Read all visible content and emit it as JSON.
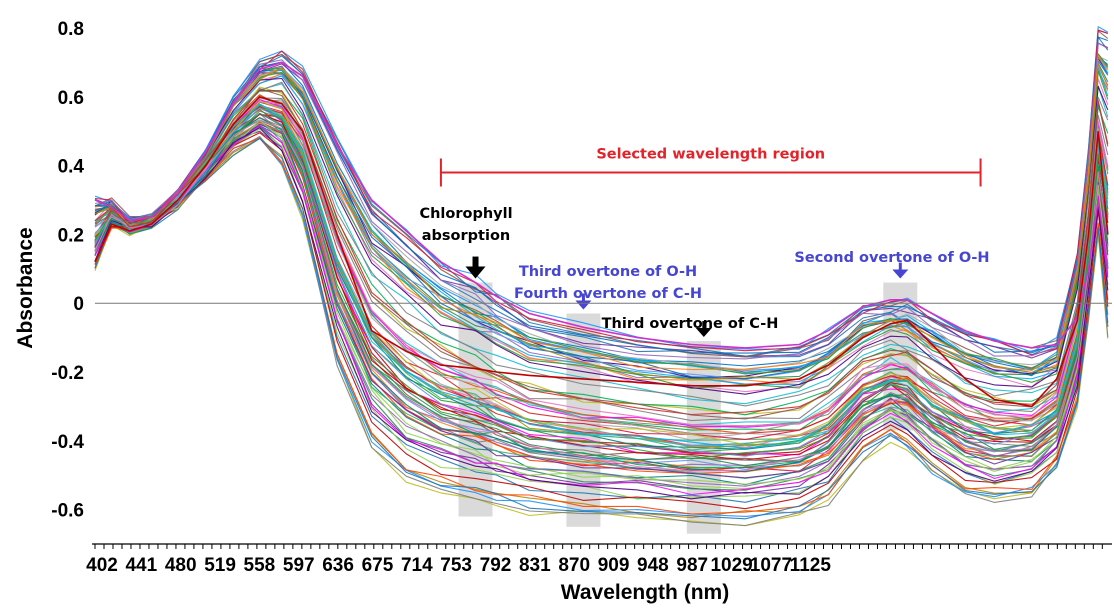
{
  "chart_data": {
    "type": "line",
    "title": "",
    "xlabel": "Wavelength (nm)",
    "ylabel": "Absorbance",
    "x_ticks": [
      "402",
      "441",
      "480",
      "519",
      "558",
      "597",
      "636",
      "675",
      "714",
      "753",
      "792",
      "831",
      "870",
      "909",
      "948",
      "987",
      "1029",
      "1077",
      "1125"
    ],
    "y_ticks": [
      "0.8",
      "0.6",
      "0.4",
      "0.2",
      "0",
      "-0.2",
      "-0.4",
      "-0.6"
    ],
    "xlim": [
      400,
      1135
    ],
    "ylim": [
      -0.7,
      0.8
    ],
    "zero_line": true,
    "region": {
      "label": "Selected wavelength region",
      "x_start": 650,
      "x_end": 1040,
      "color": "#e3232a"
    },
    "annotations": [
      {
        "lines": [
          "Chlorophyll",
          "absorption"
        ],
        "x": 675,
        "band": [
          -0.62,
          0.06
        ],
        "color": "#000000"
      },
      {
        "lines": [
          "Third overtone of O-H",
          "Fourth overtone of C-H"
        ],
        "x": 753,
        "band": [
          -0.65,
          -0.03
        ],
        "color": "#4646d2"
      },
      {
        "lines": [
          "Third overtone of C-H"
        ],
        "x": 840,
        "band": [
          -0.67,
          -0.11
        ],
        "color": "#000000"
      },
      {
        "lines": [
          "Second overtone of O-H"
        ],
        "x": 982,
        "band": [
          -0.37,
          0.06
        ],
        "color": "#4646d2"
      }
    ],
    "series_profile": {
      "x": [
        400,
        412,
        425,
        441,
        460,
        480,
        500,
        519,
        535,
        550,
        575,
        600,
        625,
        650,
        675,
        690,
        714,
        753,
        792,
        831,
        870,
        909,
        930,
        955,
        975,
        987,
        1005,
        1029,
        1050,
        1077,
        1095,
        1110,
        1118,
        1125,
        1132
      ],
      "y_min": [
        0.1,
        0.22,
        0.21,
        0.23,
        0.28,
        0.36,
        0.43,
        0.47,
        0.4,
        0.24,
        -0.18,
        -0.42,
        -0.52,
        -0.56,
        -0.58,
        -0.59,
        -0.61,
        -0.62,
        -0.63,
        -0.64,
        -0.64,
        -0.62,
        -0.58,
        -0.45,
        -0.4,
        -0.42,
        -0.5,
        -0.56,
        -0.58,
        -0.56,
        -0.48,
        -0.3,
        -0.05,
        0.2,
        -0.1
      ],
      "y_max": [
        0.3,
        0.3,
        0.24,
        0.25,
        0.32,
        0.44,
        0.6,
        0.7,
        0.73,
        0.68,
        0.48,
        0.3,
        0.21,
        0.12,
        0.06,
        0.02,
        -0.03,
        -0.07,
        -0.1,
        -0.12,
        -0.13,
        -0.12,
        -0.08,
        -0.01,
        0.01,
        0.01,
        -0.03,
        -0.08,
        -0.11,
        -0.13,
        -0.11,
        0.15,
        0.45,
        0.8,
        0.8
      ]
    },
    "highlight_series": [
      {
        "color": "#cc33cc",
        "values": [
          0.3,
          0.28,
          0.24,
          0.25,
          0.32,
          0.44,
          0.58,
          0.68,
          0.7,
          0.66,
          0.46,
          0.3,
          0.21,
          0.12,
          0.06,
          0.02,
          -0.03,
          -0.07,
          -0.1,
          -0.12,
          -0.13,
          -0.12,
          -0.08,
          -0.01,
          0.01,
          0.01,
          -0.03,
          -0.08,
          -0.11,
          -0.13,
          -0.12,
          -0.04,
          0.1,
          0.3,
          0.1
        ]
      },
      {
        "color": "#c00000",
        "values": [
          0.12,
          0.23,
          0.21,
          0.23,
          0.3,
          0.4,
          0.52,
          0.6,
          0.58,
          0.5,
          0.2,
          -0.08,
          -0.14,
          -0.18,
          -0.19,
          -0.2,
          -0.21,
          -0.22,
          -0.23,
          -0.24,
          -0.24,
          -0.22,
          -0.18,
          -0.1,
          -0.06,
          -0.05,
          -0.12,
          -0.22,
          -0.28,
          -0.3,
          -0.22,
          -0.05,
          0.2,
          0.5,
          0.2
        ]
      }
    ],
    "series_count": 90,
    "palette": [
      "#1f77b4",
      "#2ca02c",
      "#d62728",
      "#9467bd",
      "#8c564b",
      "#e377c2",
      "#17becf",
      "#bcbd22",
      "#ff7f0e",
      "#7f7f7f",
      "#00b050",
      "#0070c0",
      "#7030a0",
      "#c00000",
      "#00b0f0",
      "#92d050",
      "#ff00ff",
      "#808080",
      "#008080",
      "#4b0082",
      "#ff4500",
      "#2e8b57",
      "#1e90ff",
      "#a9a9a9",
      "#dc143c",
      "#6495ed",
      "#3cb371",
      "#b8860b"
    ]
  }
}
